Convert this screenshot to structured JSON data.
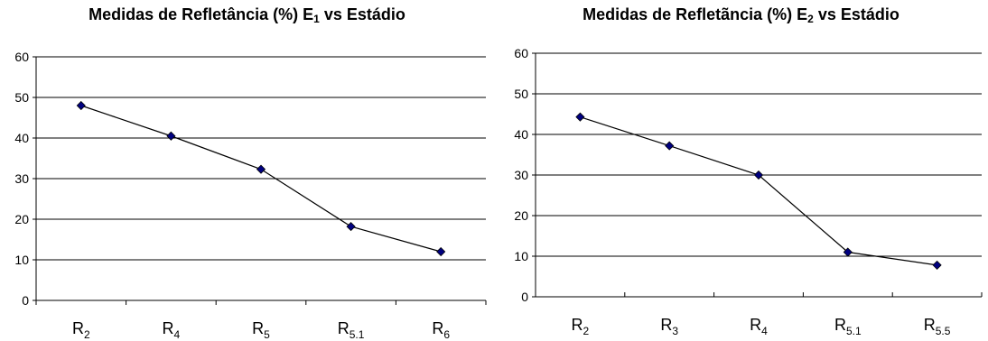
{
  "chart_data": [
    {
      "type": "line",
      "title": {
        "main": "Medidas de Refletância (%) E",
        "sub": "1",
        "rest": " vs Estádio"
      },
      "categories": [
        {
          "main": "R",
          "sub": "2"
        },
        {
          "main": "R",
          "sub": "4"
        },
        {
          "main": "R",
          "sub": "5"
        },
        {
          "main": "R",
          "sub": "5.1"
        },
        {
          "main": "R",
          "sub": "6"
        }
      ],
      "values": [
        48,
        40.5,
        32.3,
        18.2,
        12
      ],
      "ylim": [
        0,
        60
      ],
      "yticks": [
        0,
        10,
        20,
        30,
        40,
        50,
        60
      ],
      "grid": true,
      "line_color": "#000000",
      "marker_color": "#000080",
      "marker": "diamond"
    },
    {
      "type": "line",
      "title": {
        "main": "Medidas de Refletãncia (%) E",
        "sub": "2",
        "rest": " vs Estádio"
      },
      "categories": [
        {
          "main": "R",
          "sub": "2"
        },
        {
          "main": "R",
          "sub": "3"
        },
        {
          "main": "R",
          "sub": "4"
        },
        {
          "main": "R",
          "sub": "5.1"
        },
        {
          "main": "R",
          "sub": "5.5"
        }
      ],
      "values": [
        44.3,
        37.2,
        30,
        11,
        7.8
      ],
      "ylim": [
        0,
        60
      ],
      "yticks": [
        0,
        10,
        20,
        30,
        40,
        50,
        60
      ],
      "grid": true,
      "line_color": "#000000",
      "marker_color": "#000080",
      "marker": "diamond"
    }
  ]
}
